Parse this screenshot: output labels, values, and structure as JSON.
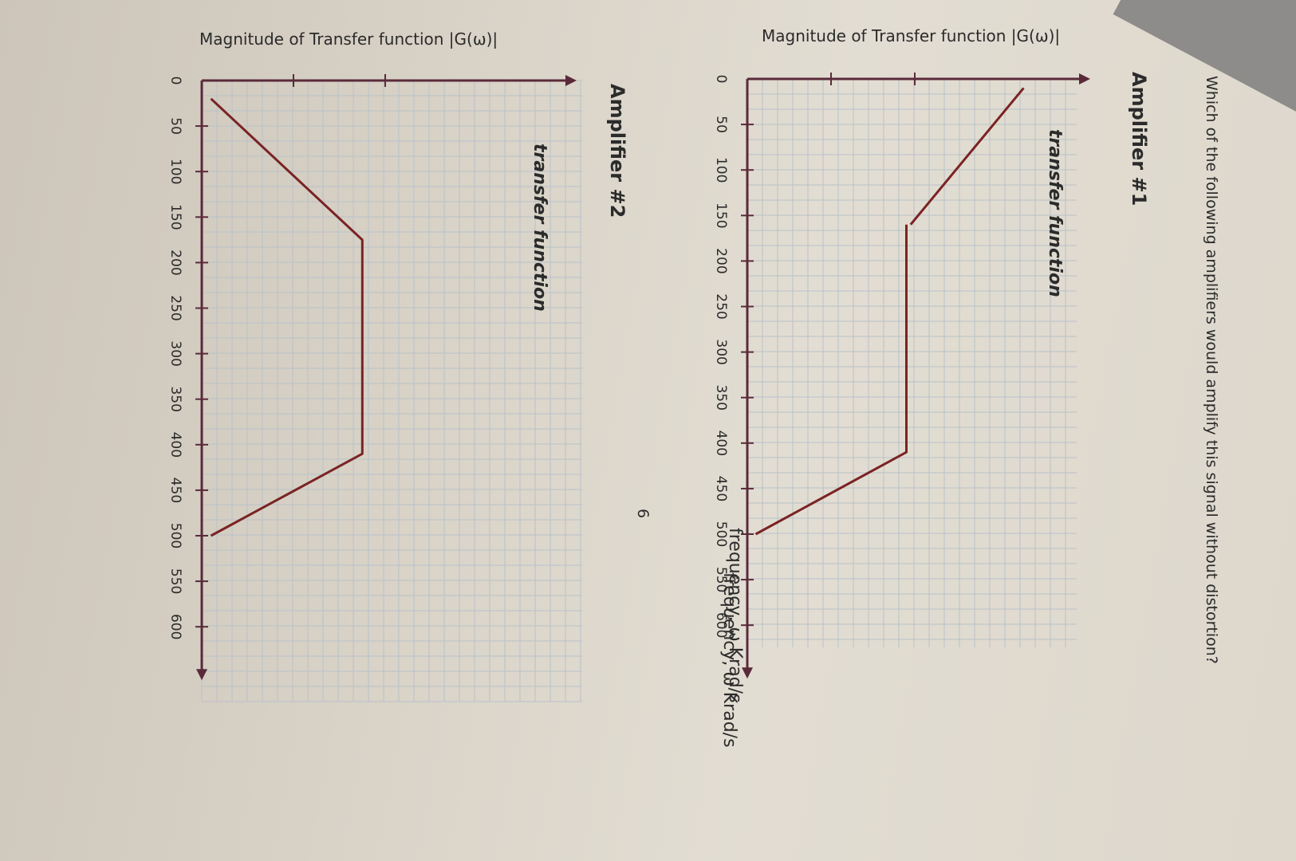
{
  "question": "Which of the following amplifiers would amplify this signal without distortion?",
  "page_number": "6",
  "chart_data": [
    {
      "type": "line",
      "title": "Amplifier #1",
      "series_label": "transfer function",
      "ylabel": "Magnitude of Transfer function |G(ω)|",
      "xlabel": "frequency, ω Krad/s",
      "x_ticks": [
        0,
        50,
        100,
        150,
        200,
        250,
        300,
        350,
        400,
        450,
        500,
        550,
        600
      ],
      "xlim": [
        0,
        650
      ],
      "ylim": [
        0,
        4
      ],
      "y_ticks": [
        1,
        2
      ],
      "grid": true,
      "color": "#7a2323",
      "segments": [
        {
          "x": [
            10,
            160
          ],
          "y": [
            3.3,
            1.95
          ]
        },
        {
          "x": [
            160,
            410,
            500
          ],
          "y": [
            1.9,
            1.9,
            0.1
          ]
        }
      ]
    },
    {
      "type": "line",
      "title": "Amplifier #2",
      "series_label": "transfer function",
      "ylabel": "Magnitude of Transfer function |G(ω)|",
      "xlabel": "frequency, ω Krad/s",
      "x_ticks": [
        0,
        50,
        100,
        150,
        200,
        250,
        300,
        350,
        400,
        450,
        500,
        550,
        600
      ],
      "xlim": [
        0,
        650
      ],
      "ylim": [
        0,
        4
      ],
      "y_ticks": [
        1,
        2
      ],
      "grid": true,
      "color": "#7a2323",
      "segments": [
        {
          "x": [
            20,
            175,
            410,
            500
          ],
          "y": [
            0.1,
            1.75,
            1.75,
            0.1
          ]
        }
      ]
    }
  ]
}
